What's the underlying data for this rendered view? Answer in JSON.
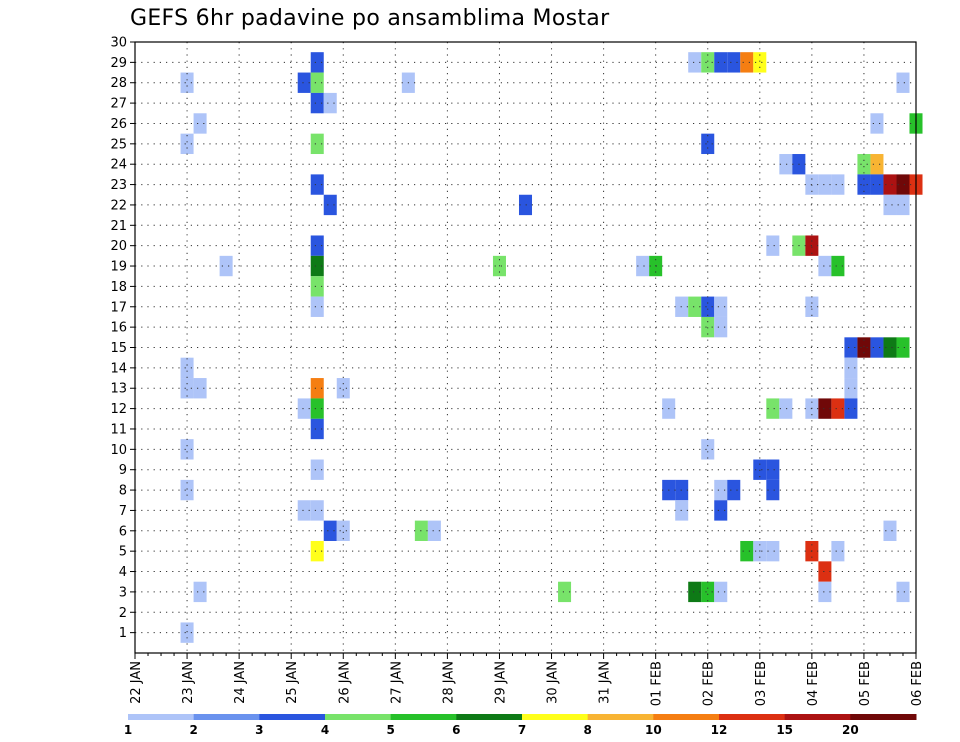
{
  "chart_data": {
    "type": "heatmap",
    "title": "GEFS 6hr padavine po ansamblima Mostar",
    "xlabel": "",
    "ylabel": "",
    "x_ticks": [
      "22 JAN",
      "23 JAN",
      "24 JAN",
      "25 JAN",
      "26 JAN",
      "27 JAN",
      "28 JAN",
      "29 JAN",
      "30 JAN",
      "31 JAN",
      "01 FEB",
      "02 FEB",
      "03 FEB",
      "04 FEB",
      "05 FEB",
      "06 FEB"
    ],
    "x_steps_per_day": 4,
    "x_range_steps": [
      0,
      60
    ],
    "y_ticks": [
      1,
      2,
      3,
      4,
      5,
      6,
      7,
      8,
      9,
      10,
      11,
      12,
      13,
      14,
      15,
      16,
      17,
      18,
      19,
      20,
      21,
      22,
      23,
      24,
      25,
      26,
      27,
      28,
      29,
      30
    ],
    "y_range": [
      0,
      30
    ],
    "grid": true,
    "colorbar": {
      "labels": [
        "1",
        "2",
        "3",
        "4",
        "5",
        "6",
        "7",
        "8",
        "10",
        "12",
        "15",
        "20"
      ],
      "colors": [
        "#aec4f8",
        "#6a92ee",
        "#2a55df",
        "#78e36a",
        "#27c12a",
        "#0e7a16",
        "#ffff1a",
        "#f8b433",
        "#f57e12",
        "#dc3012",
        "#ac1212",
        "#700808"
      ]
    },
    "cells": [
      {
        "m": 29,
        "t": 14,
        "v": 3
      },
      {
        "m": 29,
        "t": 43,
        "v": 1
      },
      {
        "m": 29,
        "t": 44,
        "v": 4
      },
      {
        "m": 29,
        "t": 45,
        "v": 3
      },
      {
        "m": 29,
        "t": 46,
        "v": 3
      },
      {
        "m": 29,
        "t": 47,
        "v": 10
      },
      {
        "m": 29,
        "t": 48,
        "v": 7
      },
      {
        "m": 28,
        "t": 4,
        "v": 1
      },
      {
        "m": 28,
        "t": 13,
        "v": 3
      },
      {
        "m": 28,
        "t": 14,
        "v": 4
      },
      {
        "m": 28,
        "t": 21,
        "v": 1
      },
      {
        "m": 28,
        "t": 59,
        "v": 1
      },
      {
        "m": 27,
        "t": 14,
        "v": 3
      },
      {
        "m": 27,
        "t": 15,
        "v": 1
      },
      {
        "m": 26,
        "t": 5,
        "v": 1
      },
      {
        "m": 26,
        "t": 57,
        "v": 1
      },
      {
        "m": 26,
        "t": 60,
        "v": 5
      },
      {
        "m": 25,
        "t": 4,
        "v": 1
      },
      {
        "m": 25,
        "t": 14,
        "v": 4
      },
      {
        "m": 25,
        "t": 44,
        "v": 3
      },
      {
        "m": 24,
        "t": 50,
        "v": 1
      },
      {
        "m": 24,
        "t": 51,
        "v": 3
      },
      {
        "m": 24,
        "t": 56,
        "v": 4
      },
      {
        "m": 24,
        "t": 57,
        "v": 8
      },
      {
        "m": 23,
        "t": 14,
        "v": 3
      },
      {
        "m": 23,
        "t": 52,
        "v": 1
      },
      {
        "m": 23,
        "t": 53,
        "v": 1
      },
      {
        "m": 23,
        "t": 54,
        "v": 1
      },
      {
        "m": 23,
        "t": 56,
        "v": 3
      },
      {
        "m": 23,
        "t": 57,
        "v": 3
      },
      {
        "m": 23,
        "t": 58,
        "v": 15
      },
      {
        "m": 23,
        "t": 59,
        "v": 20
      },
      {
        "m": 23,
        "t": 60,
        "v": 12
      },
      {
        "m": 22,
        "t": 15,
        "v": 3
      },
      {
        "m": 22,
        "t": 30,
        "v": 3
      },
      {
        "m": 22,
        "t": 58,
        "v": 1
      },
      {
        "m": 22,
        "t": 59,
        "v": 1
      },
      {
        "m": 20,
        "t": 14,
        "v": 3
      },
      {
        "m": 20,
        "t": 49,
        "v": 1
      },
      {
        "m": 20,
        "t": 51,
        "v": 4
      },
      {
        "m": 20,
        "t": 52,
        "v": 15
      },
      {
        "m": 19,
        "t": 7,
        "v": 1
      },
      {
        "m": 19,
        "t": 14,
        "v": 6
      },
      {
        "m": 19,
        "t": 28,
        "v": 4
      },
      {
        "m": 19,
        "t": 39,
        "v": 1
      },
      {
        "m": 19,
        "t": 40,
        "v": 5
      },
      {
        "m": 19,
        "t": 53,
        "v": 1
      },
      {
        "m": 19,
        "t": 54,
        "v": 5
      },
      {
        "m": 18,
        "t": 14,
        "v": 4
      },
      {
        "m": 17,
        "t": 14,
        "v": 1
      },
      {
        "m": 17,
        "t": 42,
        "v": 1
      },
      {
        "m": 17,
        "t": 43,
        "v": 4
      },
      {
        "m": 17,
        "t": 44,
        "v": 3
      },
      {
        "m": 17,
        "t": 45,
        "v": 1
      },
      {
        "m": 17,
        "t": 52,
        "v": 1
      },
      {
        "m": 16,
        "t": 44,
        "v": 4
      },
      {
        "m": 16,
        "t": 45,
        "v": 1
      },
      {
        "m": 15,
        "t": 55,
        "v": 3
      },
      {
        "m": 15,
        "t": 56,
        "v": 20
      },
      {
        "m": 15,
        "t": 57,
        "v": 3
      },
      {
        "m": 15,
        "t": 58,
        "v": 6
      },
      {
        "m": 15,
        "t": 59,
        "v": 5
      },
      {
        "m": 14,
        "t": 4,
        "v": 1
      },
      {
        "m": 14,
        "t": 55,
        "v": 1
      },
      {
        "m": 13,
        "t": 4,
        "v": 1
      },
      {
        "m": 13,
        "t": 5,
        "v": 1
      },
      {
        "m": 13,
        "t": 14,
        "v": 10
      },
      {
        "m": 13,
        "t": 16,
        "v": 1
      },
      {
        "m": 13,
        "t": 55,
        "v": 1
      },
      {
        "m": 12,
        "t": 13,
        "v": 1
      },
      {
        "m": 12,
        "t": 14,
        "v": 5
      },
      {
        "m": 12,
        "t": 41,
        "v": 1
      },
      {
        "m": 12,
        "t": 49,
        "v": 4
      },
      {
        "m": 12,
        "t": 50,
        "v": 1
      },
      {
        "m": 12,
        "t": 52,
        "v": 1
      },
      {
        "m": 12,
        "t": 53,
        "v": 20
      },
      {
        "m": 12,
        "t": 54,
        "v": 12
      },
      {
        "m": 12,
        "t": 55,
        "v": 3
      },
      {
        "m": 11,
        "t": 14,
        "v": 3
      },
      {
        "m": 10,
        "t": 4,
        "v": 1
      },
      {
        "m": 10,
        "t": 44,
        "v": 1
      },
      {
        "m": 9,
        "t": 14,
        "v": 1
      },
      {
        "m": 9,
        "t": 48,
        "v": 3
      },
      {
        "m": 9,
        "t": 49,
        "v": 3
      },
      {
        "m": 8,
        "t": 4,
        "v": 1
      },
      {
        "m": 8,
        "t": 41,
        "v": 3
      },
      {
        "m": 8,
        "t": 42,
        "v": 3
      },
      {
        "m": 8,
        "t": 45,
        "v": 1
      },
      {
        "m": 8,
        "t": 46,
        "v": 3
      },
      {
        "m": 8,
        "t": 49,
        "v": 3
      },
      {
        "m": 7,
        "t": 13,
        "v": 1
      },
      {
        "m": 7,
        "t": 14,
        "v": 1
      },
      {
        "m": 7,
        "t": 42,
        "v": 1
      },
      {
        "m": 7,
        "t": 45,
        "v": 3
      },
      {
        "m": 6,
        "t": 15,
        "v": 3
      },
      {
        "m": 6,
        "t": 16,
        "v": 1
      },
      {
        "m": 6,
        "t": 22,
        "v": 4
      },
      {
        "m": 6,
        "t": 23,
        "v": 1
      },
      {
        "m": 6,
        "t": 58,
        "v": 1
      },
      {
        "m": 5,
        "t": 14,
        "v": 7
      },
      {
        "m": 5,
        "t": 47,
        "v": 5
      },
      {
        "m": 5,
        "t": 48,
        "v": 1
      },
      {
        "m": 5,
        "t": 49,
        "v": 1
      },
      {
        "m": 5,
        "t": 52,
        "v": 12
      },
      {
        "m": 5,
        "t": 54,
        "v": 1
      },
      {
        "m": 4,
        "t": 53,
        "v": 12
      },
      {
        "m": 3,
        "t": 5,
        "v": 1
      },
      {
        "m": 3,
        "t": 33,
        "v": 4
      },
      {
        "m": 3,
        "t": 43,
        "v": 6
      },
      {
        "m": 3,
        "t": 44,
        "v": 5
      },
      {
        "m": 3,
        "t": 45,
        "v": 1
      },
      {
        "m": 3,
        "t": 53,
        "v": 1
      },
      {
        "m": 3,
        "t": 59,
        "v": 1
      },
      {
        "m": 1,
        "t": 4,
        "v": 1
      }
    ]
  }
}
